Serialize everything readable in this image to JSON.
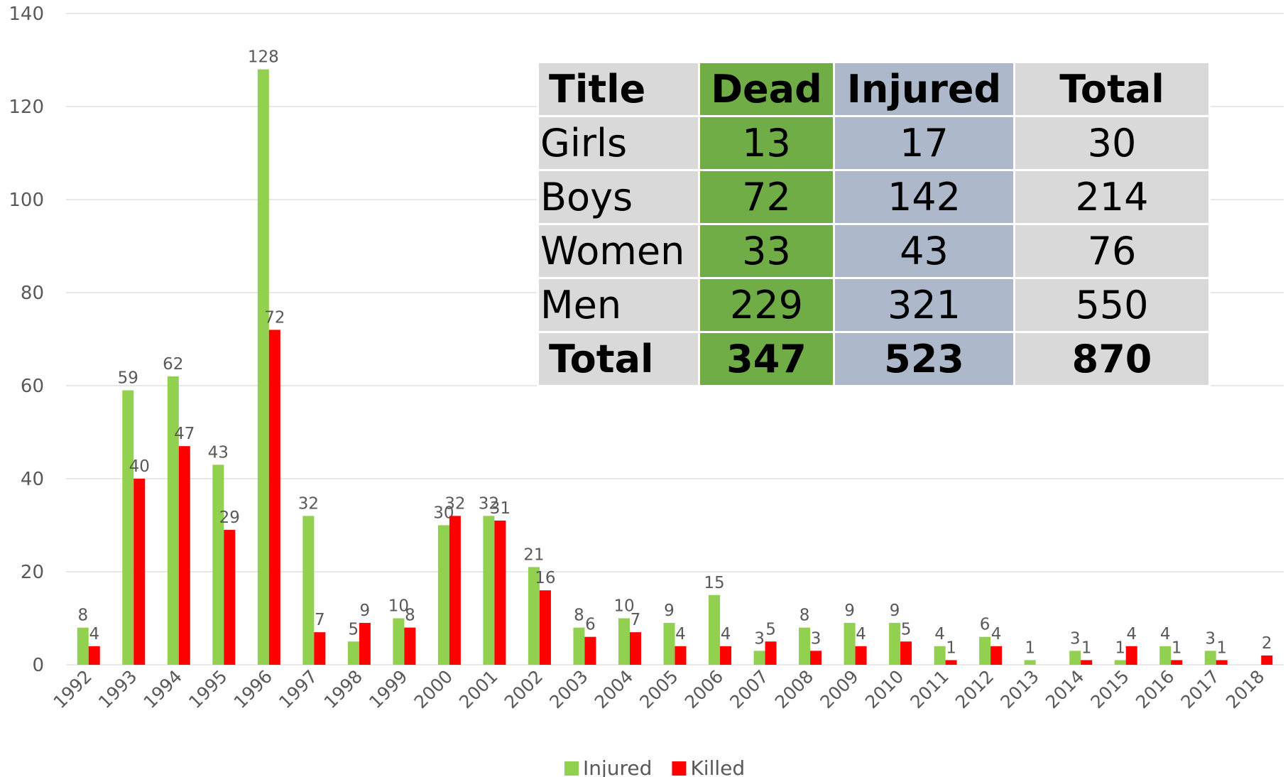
{
  "chart_data": {
    "type": "bar",
    "categories": [
      "1992",
      "1993",
      "1994",
      "1995",
      "1996",
      "1997",
      "1998",
      "1999",
      "2000",
      "2001",
      "2002",
      "2003",
      "2004",
      "2005",
      "2006",
      "2007",
      "2008",
      "2009",
      "2010",
      "2011",
      "2012",
      "2013",
      "2014",
      "2015",
      "2016",
      "2017",
      "2018"
    ],
    "series": [
      {
        "name": "Injured",
        "color": "#92d050",
        "values": [
          8,
          59,
          62,
          43,
          128,
          32,
          5,
          10,
          30,
          32,
          21,
          8,
          10,
          9,
          15,
          3,
          8,
          9,
          9,
          4,
          6,
          1,
          3,
          1,
          4,
          3,
          null
        ]
      },
      {
        "name": "Killed",
        "color": "#ff0000",
        "values": [
          4,
          40,
          47,
          29,
          72,
          7,
          9,
          8,
          32,
          31,
          16,
          6,
          7,
          4,
          4,
          5,
          3,
          4,
          5,
          1,
          4,
          null,
          1,
          4,
          1,
          1,
          2
        ]
      }
    ],
    "ylim": [
      0,
      140
    ],
    "yticks": [
      0,
      20,
      40,
      60,
      80,
      100,
      120,
      140
    ],
    "grid": true,
    "legend": "bottom"
  },
  "table": {
    "header": [
      "Title",
      "Dead",
      "Injured",
      "Total"
    ],
    "rows": [
      [
        "Girls",
        13,
        17,
        30
      ],
      [
        "Boys",
        72,
        142,
        214
      ],
      [
        "Women",
        33,
        43,
        76
      ],
      [
        "Men",
        229,
        321,
        550
      ],
      [
        "Total",
        347,
        523,
        870
      ]
    ]
  }
}
